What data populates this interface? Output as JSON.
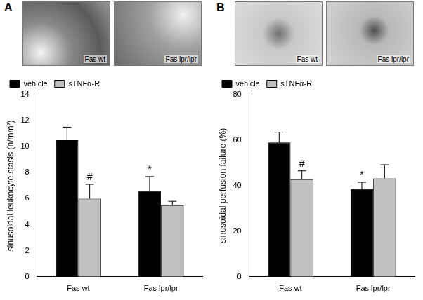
{
  "chart_data": [
    {
      "type": "bar",
      "panel_label": "A",
      "image_captions": [
        "Fas wt",
        "Fas lpr/lpr"
      ],
      "categories": [
        "Fas wt",
        "Fas lpr/lpr"
      ],
      "y_label": "sinusoidal leukocyte stasis (n/mm²)",
      "series": [
        {
          "name": "vehicle",
          "color": "#000000",
          "values": [
            10.5,
            6.6
          ],
          "errors": [
            1.0,
            1.1
          ],
          "annotations": [
            null,
            "*"
          ]
        },
        {
          "name": "sTNFα-R",
          "color": "#c0c0c0",
          "values": [
            6.0,
            5.5
          ],
          "errors": [
            1.1,
            0.3
          ],
          "annotations": [
            "#",
            null
          ]
        }
      ],
      "ylim": [
        0,
        14
      ],
      "yticks": [
        0,
        2,
        4,
        6,
        8,
        10,
        12,
        14
      ],
      "grid": false,
      "legend": "top-left"
    },
    {
      "type": "bar",
      "panel_label": "B",
      "image_captions": [
        "Fas wt",
        "Fas lpr/lpr"
      ],
      "categories": [
        "Fas wt",
        "Fas lpr/lpr"
      ],
      "y_label": "sinusoidal perfusion failure (%)",
      "series": [
        {
          "name": "vehicle",
          "color": "#000000",
          "values": [
            59,
            38.5
          ],
          "errors": [
            4.5,
            3.0
          ],
          "annotations": [
            null,
            "*"
          ]
        },
        {
          "name": "sTNFα-R",
          "color": "#c0c0c0",
          "values": [
            42.8,
            43.2
          ],
          "errors": [
            3.7,
            6.0
          ],
          "annotations": [
            "#",
            null
          ]
        }
      ],
      "ylim": [
        0,
        80
      ],
      "yticks": [
        0,
        20,
        40,
        60,
        80
      ],
      "grid": false,
      "legend": "top-left"
    }
  ]
}
